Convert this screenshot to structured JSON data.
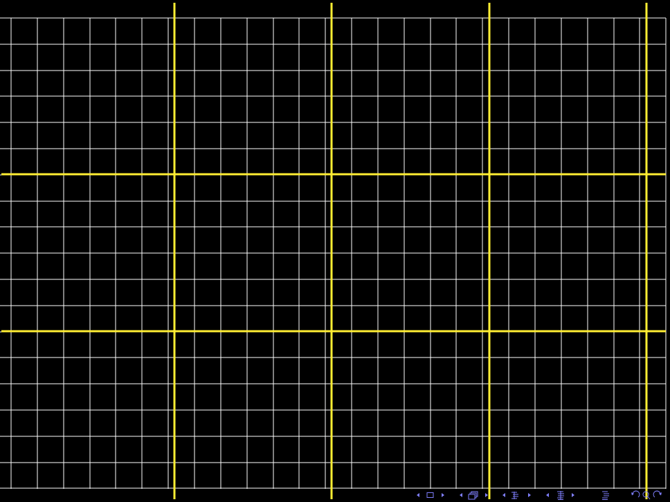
{
  "slide": {
    "background_color": "#000000"
  },
  "grid": {
    "minor_color": "#ffffff",
    "major_color": "#ffee33",
    "minor_columns": 25,
    "minor_rows": 18,
    "major_column_every": 6,
    "major_row_every": 6
  },
  "navigation": {
    "icon_color": "#8080ff",
    "controls": [
      "nav-prev-slide-icon",
      "nav-slide-icon",
      "nav-next-slide-icon",
      "nav-prev-frame-icon",
      "nav-frame-icon",
      "nav-next-frame-icon",
      "nav-prev-subsection-icon",
      "nav-subsection-icon",
      "nav-next-subsection-icon",
      "nav-prev-section-icon",
      "nav-section-icon",
      "nav-next-section-icon",
      "nav-appendix-icon",
      "nav-back-icon",
      "nav-search-icon",
      "nav-forward-icon"
    ]
  }
}
